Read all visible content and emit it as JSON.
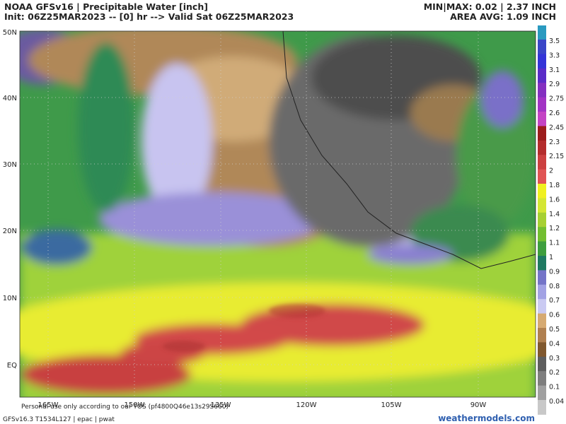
{
  "header": {
    "title": "NOAA GFSv16 | Precipitable Water [inch]",
    "init": "Init: 06Z25MAR2023 -- [0] hr --> Valid Sat 06Z25MAR2023",
    "minmax": "MIN|MAX: 0.02 | 2.37 INCH",
    "area_avg": "AREA AVG: 1.09 INCH"
  },
  "map": {
    "lat_labels": [
      "50N",
      "40N",
      "30N",
      "20N",
      "10N",
      "EQ"
    ],
    "lon_labels": [
      "165W",
      "150W",
      "135W",
      "120W",
      "105W",
      "90W"
    ]
  },
  "colorbar": {
    "labels": [
      "3.5",
      "3.3",
      "3.1",
      "2.9",
      "2.75",
      "2.6",
      "2.45",
      "2.3",
      "2.15",
      "2",
      "1.8",
      "1.6",
      "1.4",
      "1.2",
      "1.1",
      "1",
      "0.9",
      "0.8",
      "0.7",
      "0.6",
      "0.5",
      "0.4",
      "0.3",
      "0.2",
      "0.1",
      "0.04"
    ]
  },
  "footer": {
    "notice": "Personal use only according to our TOS (pf4800Q46e13s29S660)",
    "model": "GFSv16.3 T1534L127 | epac | pwat",
    "site": "weathermodels.com"
  }
}
